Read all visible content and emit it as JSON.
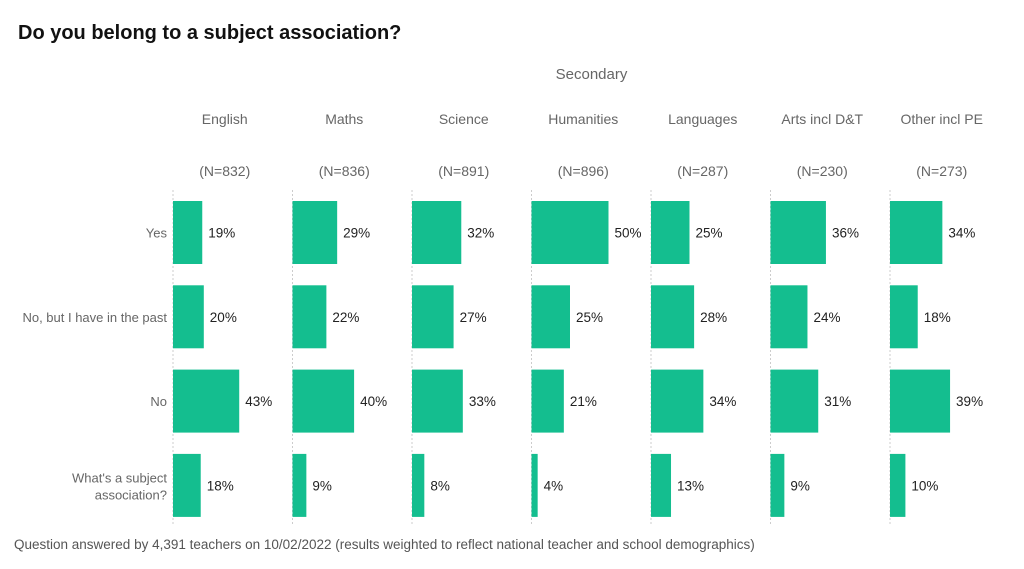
{
  "chart_data": {
    "type": "bar",
    "title": "Do you belong to a subject association?",
    "super_header": "Secondary",
    "panels": [
      {
        "name": "English",
        "n": "(N=832)",
        "values": [
          19,
          20,
          43,
          18
        ]
      },
      {
        "name": "Maths",
        "n": "(N=836)",
        "values": [
          29,
          22,
          40,
          9
        ]
      },
      {
        "name": "Science",
        "n": "(N=891)",
        "values": [
          32,
          27,
          33,
          8
        ]
      },
      {
        "name": "Humanities",
        "n": "(N=896)",
        "values": [
          50,
          25,
          21,
          4
        ]
      },
      {
        "name": "Languages",
        "n": "(N=287)",
        "values": [
          25,
          28,
          34,
          13
        ]
      },
      {
        "name": "Arts incl D&T",
        "n": "(N=230)",
        "values": [
          36,
          24,
          31,
          9
        ]
      },
      {
        "name": "Other incl PE",
        "n": "(N=273)",
        "values": [
          34,
          18,
          39,
          10
        ]
      }
    ],
    "categories": [
      "Yes",
      "No, but I have in the past",
      "No",
      [
        "What's a subject",
        "association?"
      ]
    ],
    "unit": "%",
    "xlim": [
      0,
      78
    ],
    "bar_color": "#14BE8F",
    "footer": "Question answered by 4,391 teachers on 10/02/2022 (results weighted to reflect national teacher and school demographics)"
  }
}
